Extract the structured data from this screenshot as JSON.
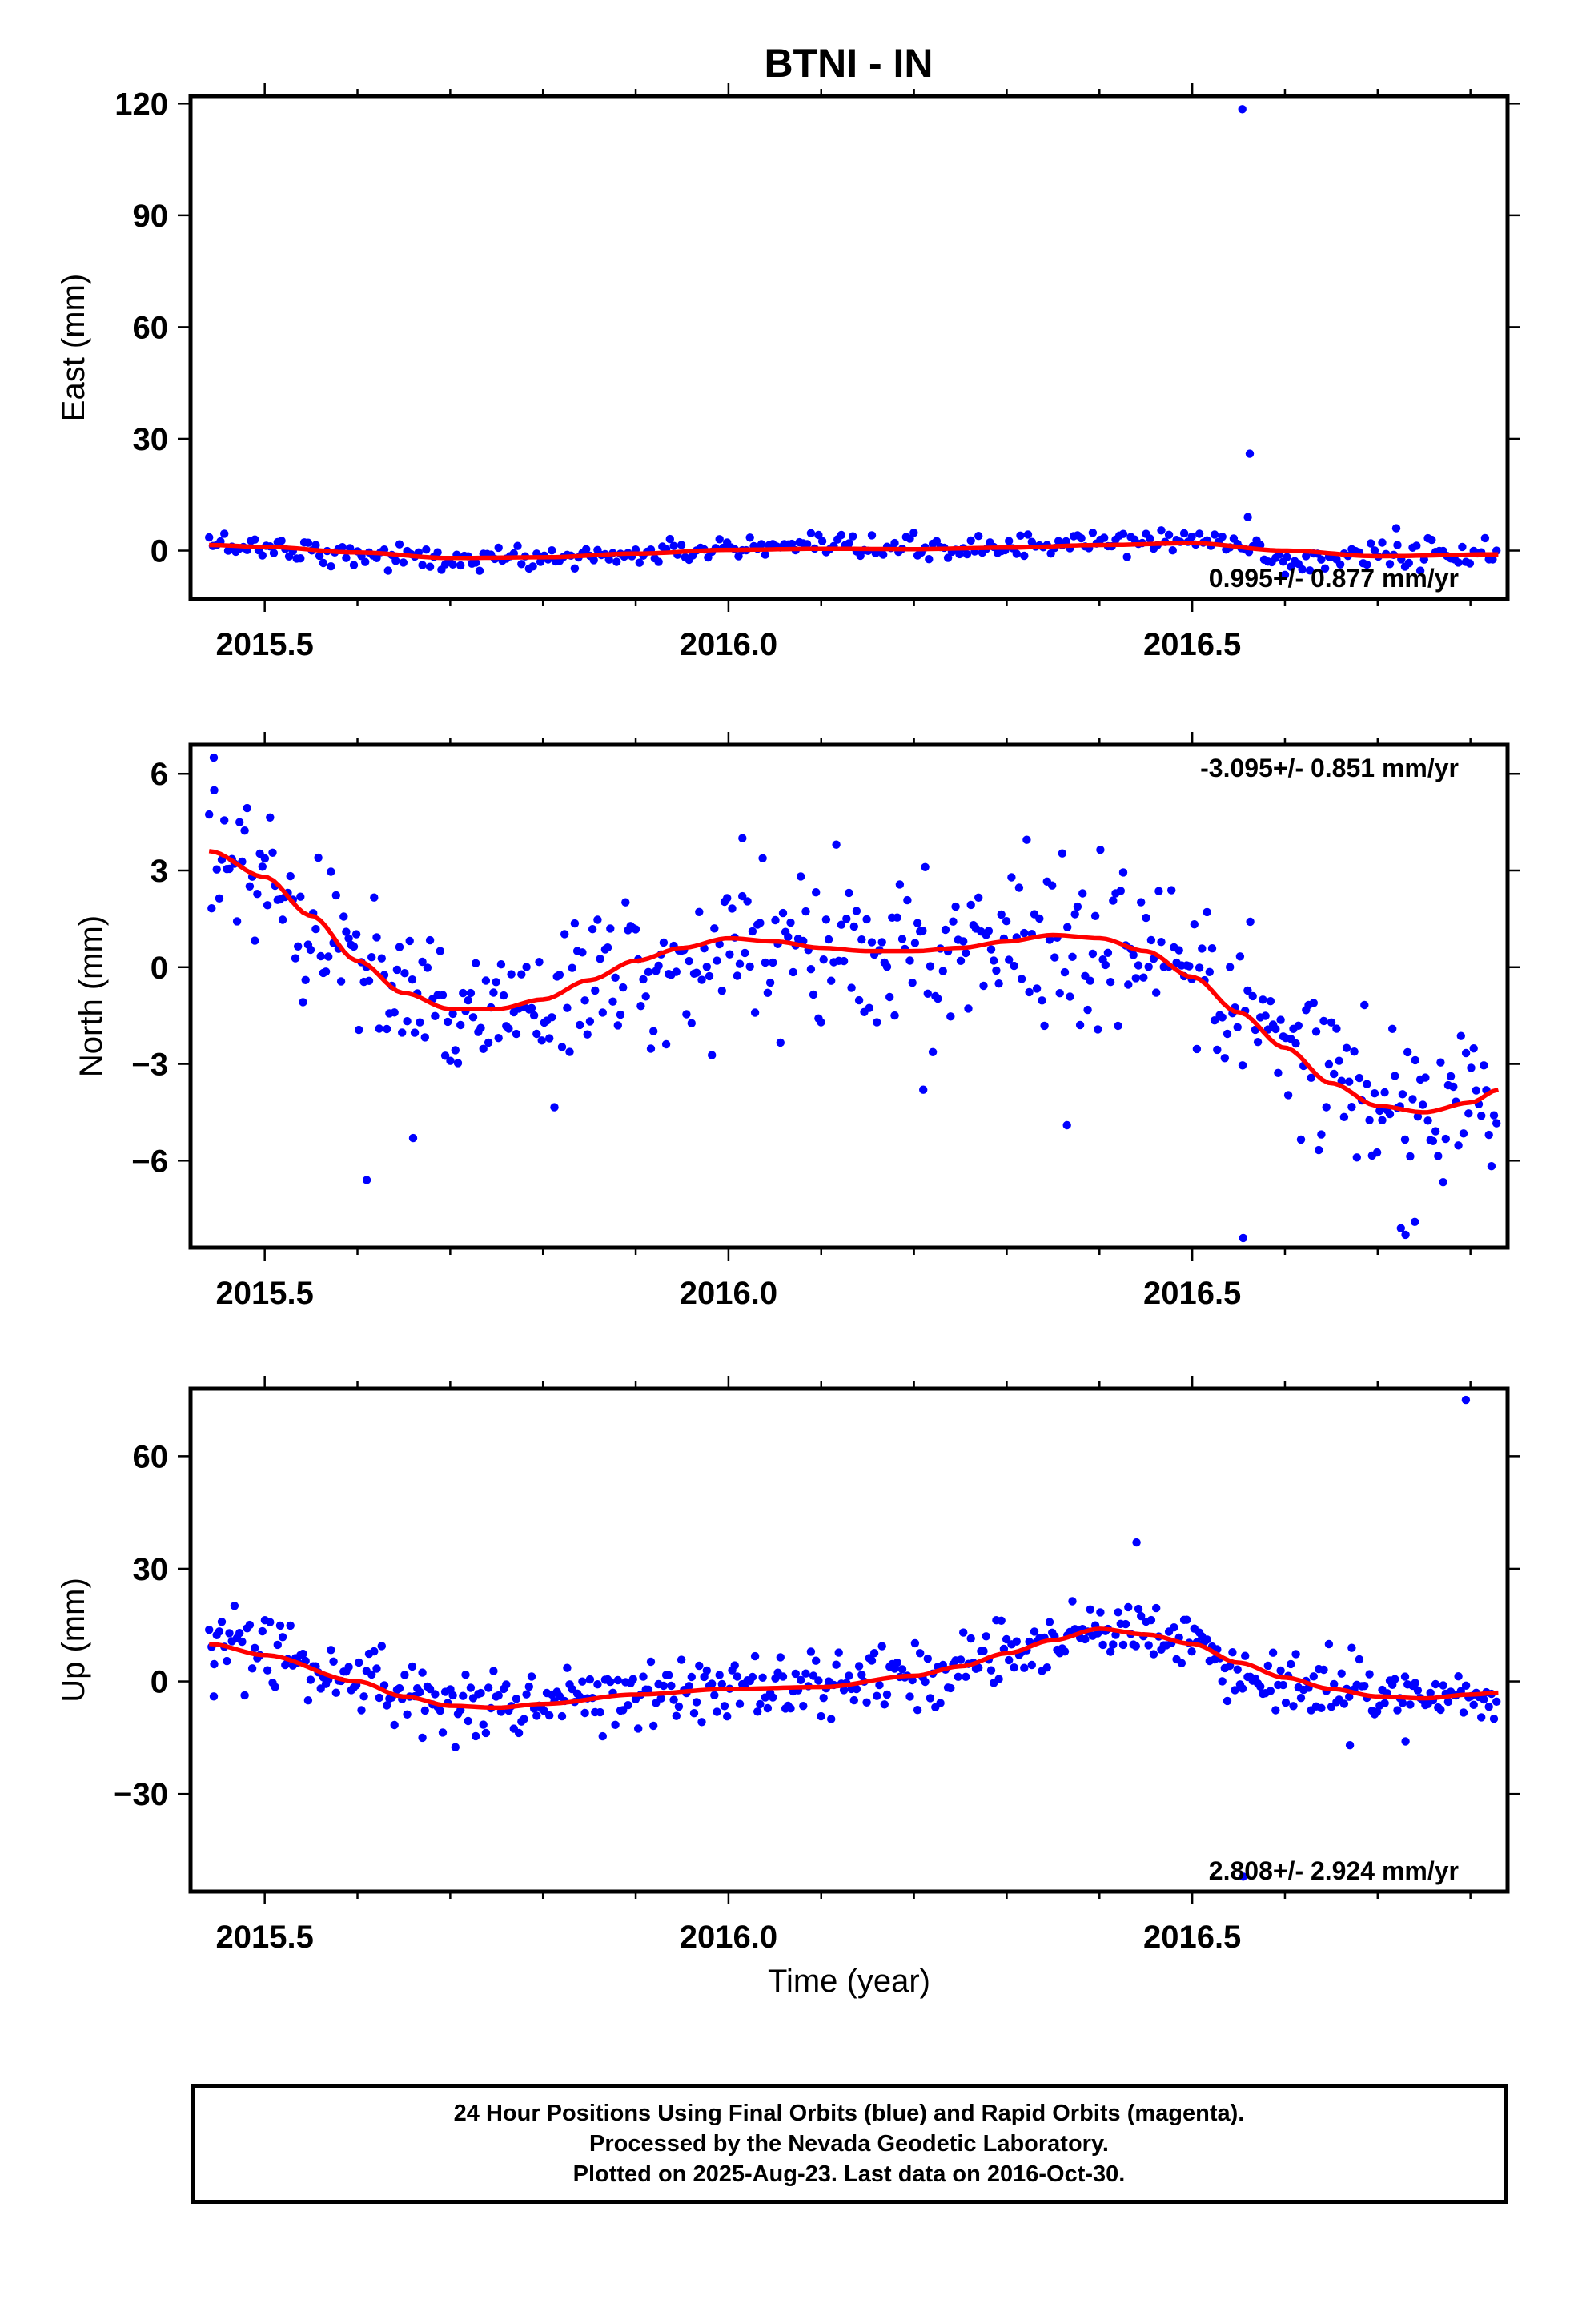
{
  "chart_data": [
    {
      "type": "scatter",
      "panel": "east",
      "title": "BTNI - IN",
      "ylabel": "East (mm)",
      "xlabel": "",
      "xlim": [
        2015.42,
        2016.84
      ],
      "ylim": [
        -13,
        122
      ],
      "yticks": [
        0,
        30,
        60,
        90,
        120
      ],
      "xticks": [
        2015.5,
        2016.0,
        2016.5
      ],
      "tick_labels_x": [
        "2015.5",
        "2016.0",
        "2016.5"
      ],
      "tick_labels_y": [
        "0",
        "30",
        "60",
        "90",
        "120"
      ],
      "rate_label": "0.995+/- 0.877 mm/yr",
      "rate_position": "bottom-right",
      "grid": false,
      "series": [
        {
          "name": "Final Orbits (blue)",
          "color": "#0000ff",
          "kind": "points",
          "anchors": [
            [
              2015.44,
              2
            ],
            [
              2015.5,
              1
            ],
            [
              2015.6,
              -1
            ],
            [
              2015.7,
              -2.5
            ],
            [
              2015.8,
              -2
            ],
            [
              2015.9,
              -1
            ],
            [
              2016.0,
              0.5
            ],
            [
              2016.1,
              0.5
            ],
            [
              2016.2,
              0.5
            ],
            [
              2016.3,
              1
            ],
            [
              2016.4,
              2
            ],
            [
              2016.5,
              3
            ],
            [
              2016.56,
              1
            ],
            [
              2016.6,
              -3
            ],
            [
              2016.7,
              -1
            ],
            [
              2016.83,
              -1
            ]
          ],
          "noise": 1.6,
          "step_days": 1.5,
          "outliers": [
            [
              2016.554,
              118.5
            ],
            [
              2016.562,
              26
            ],
            [
              2016.56,
              9
            ],
            [
              2016.72,
              6
            ],
            [
              2016.6,
              -6.5
            ]
          ]
        },
        {
          "name": "Model fit",
          "color": "#ff0000",
          "kind": "line",
          "anchors": [
            [
              2015.44,
              1.5
            ],
            [
              2015.5,
              1
            ],
            [
              2015.6,
              -0.5
            ],
            [
              2015.7,
              -2
            ],
            [
              2015.8,
              -1.8
            ],
            [
              2015.9,
              -0.8
            ],
            [
              2016.0,
              0.2
            ],
            [
              2016.1,
              0.5
            ],
            [
              2016.2,
              0.4
            ],
            [
              2016.3,
              0.8
            ],
            [
              2016.4,
              1.5
            ],
            [
              2016.5,
              2
            ],
            [
              2016.6,
              0
            ],
            [
              2016.7,
              -1.5
            ],
            [
              2016.83,
              -1
            ]
          ]
        }
      ]
    },
    {
      "type": "scatter",
      "panel": "north",
      "title": "",
      "ylabel": "North (mm)",
      "xlabel": "",
      "xlim": [
        2015.42,
        2016.84
      ],
      "ylim": [
        -8.7,
        6.9
      ],
      "yticks": [
        -6,
        -3,
        0,
        3,
        6
      ],
      "xticks": [
        2015.5,
        2016.0,
        2016.5
      ],
      "tick_labels_x": [
        "2015.5",
        "2016.0",
        "2016.5"
      ],
      "tick_labels_y": [
        "−6",
        "−3",
        "0",
        "3",
        "6"
      ],
      "rate_label": "-3.095+/- 0.851 mm/yr",
      "rate_position": "top-right",
      "grid": false,
      "series": [
        {
          "name": "Final Orbits (blue)",
          "color": "#0000ff",
          "kind": "points",
          "anchors": [
            [
              2015.44,
              3.7
            ],
            [
              2015.5,
              3.0
            ],
            [
              2015.55,
              1.5
            ],
            [
              2015.6,
              0.3
            ],
            [
              2015.65,
              -0.8
            ],
            [
              2015.72,
              -1.4
            ],
            [
              2015.8,
              -1.2
            ],
            [
              2015.9,
              -0.3
            ],
            [
              2016.0,
              0.8
            ],
            [
              2016.1,
              0.8
            ],
            [
              2016.2,
              0.4
            ],
            [
              2016.3,
              0.7
            ],
            [
              2016.37,
              1.0
            ],
            [
              2016.45,
              0.6
            ],
            [
              2016.5,
              -0.2
            ],
            [
              2016.55,
              -1.3
            ],
            [
              2016.6,
              -2.5
            ],
            [
              2016.7,
              -4.0
            ],
            [
              2016.75,
              -4.6
            ],
            [
              2016.83,
              -4.0
            ]
          ],
          "noise": 1.15,
          "step_days": 1.0,
          "outliers": [
            [
              2015.445,
              6.5
            ],
            [
              2015.61,
              -6.6
            ],
            [
              2015.66,
              -5.3
            ],
            [
              2016.555,
              -8.4
            ],
            [
              2016.725,
              -8.1
            ],
            [
              2016.74,
              -7.9
            ],
            [
              2016.73,
              -8.3
            ],
            [
              2016.365,
              -4.9
            ],
            [
              2016.21,
              -3.8
            ],
            [
              2016.015,
              4.0
            ]
          ]
        },
        {
          "name": "Model fit",
          "color": "#ff0000",
          "kind": "line",
          "anchors": [
            [
              2015.44,
              3.6
            ],
            [
              2015.5,
              2.8
            ],
            [
              2015.55,
              1.6
            ],
            [
              2015.6,
              0.2
            ],
            [
              2015.65,
              -0.8
            ],
            [
              2015.7,
              -1.3
            ],
            [
              2015.75,
              -1.3
            ],
            [
              2015.8,
              -1.0
            ],
            [
              2015.85,
              -0.4
            ],
            [
              2015.9,
              0.2
            ],
            [
              2015.95,
              0.6
            ],
            [
              2016.0,
              0.9
            ],
            [
              2016.05,
              0.8
            ],
            [
              2016.1,
              0.6
            ],
            [
              2016.15,
              0.5
            ],
            [
              2016.2,
              0.5
            ],
            [
              2016.25,
              0.6
            ],
            [
              2016.3,
              0.8
            ],
            [
              2016.35,
              1.0
            ],
            [
              2016.4,
              0.9
            ],
            [
              2016.45,
              0.5
            ],
            [
              2016.5,
              -0.3
            ],
            [
              2016.55,
              -1.4
            ],
            [
              2016.6,
              -2.5
            ],
            [
              2016.65,
              -3.6
            ],
            [
              2016.7,
              -4.3
            ],
            [
              2016.75,
              -4.5
            ],
            [
              2016.8,
              -4.2
            ],
            [
              2016.83,
              -3.8
            ]
          ]
        }
      ]
    },
    {
      "type": "scatter",
      "panel": "up",
      "title": "",
      "ylabel": "Up (mm)",
      "xlabel": "Time (year)",
      "xlim": [
        2015.42,
        2016.84
      ],
      "ylim": [
        -56,
        78
      ],
      "yticks": [
        -30,
        0,
        30,
        60
      ],
      "xticks": [
        2015.5,
        2016.0,
        2016.5
      ],
      "tick_labels_x": [
        "2015.5",
        "2016.0",
        "2016.5"
      ],
      "tick_labels_y": [
        "−30",
        "0",
        "30",
        "60"
      ],
      "rate_label": "2.808+/- 2.924 mm/yr",
      "rate_position": "bottom-right",
      "grid": false,
      "series": [
        {
          "name": "Final Orbits (blue)",
          "color": "#0000ff",
          "kind": "points",
          "anchors": [
            [
              2015.44,
              10
            ],
            [
              2015.5,
              8
            ],
            [
              2015.6,
              0
            ],
            [
              2015.7,
              -6
            ],
            [
              2015.8,
              -6
            ],
            [
              2015.9,
              -3
            ],
            [
              2016.0,
              -2
            ],
            [
              2016.1,
              -1
            ],
            [
              2016.2,
              2
            ],
            [
              2016.3,
              8
            ],
            [
              2016.4,
              14
            ],
            [
              2016.5,
              10
            ],
            [
              2016.56,
              2
            ],
            [
              2016.6,
              -1
            ],
            [
              2016.7,
              -4
            ],
            [
              2016.83,
              -3
            ]
          ],
          "noise": 4.5,
          "step_days": 1.0,
          "outliers": [
            [
              2016.795,
              75
            ],
            [
              2016.44,
              37
            ],
            [
              2016.555,
              -52
            ],
            [
              2015.445,
              -4
            ],
            [
              2016.67,
              -17
            ],
            [
              2016.73,
              -16
            ],
            [
              2015.67,
              -15
            ]
          ]
        },
        {
          "name": "Model fit",
          "color": "#ff0000",
          "kind": "line",
          "anchors": [
            [
              2015.44,
              10
            ],
            [
              2015.5,
              7
            ],
            [
              2015.6,
              0
            ],
            [
              2015.65,
              -4
            ],
            [
              2015.7,
              -6.5
            ],
            [
              2015.75,
              -7
            ],
            [
              2015.8,
              -6
            ],
            [
              2015.9,
              -3.5
            ],
            [
              2016.0,
              -2
            ],
            [
              2016.1,
              -1.5
            ],
            [
              2016.2,
              1.5
            ],
            [
              2016.25,
              4
            ],
            [
              2016.3,
              7.5
            ],
            [
              2016.35,
              11
            ],
            [
              2016.4,
              14
            ],
            [
              2016.45,
              12.5
            ],
            [
              2016.5,
              10
            ],
            [
              2016.55,
              5
            ],
            [
              2016.6,
              1
            ],
            [
              2016.65,
              -2
            ],
            [
              2016.7,
              -4
            ],
            [
              2016.75,
              -4.5
            ],
            [
              2016.8,
              -3.5
            ],
            [
              2016.83,
              -3
            ]
          ]
        }
      ]
    }
  ],
  "footer": {
    "line1": "24 Hour Positions Using Final Orbits (blue) and Rapid Orbits (magenta).",
    "line2": "Processed by the Nevada Geodetic Laboratory.",
    "line3": "Plotted on 2025-Aug-23. Last data on 2016-Oct-30."
  }
}
